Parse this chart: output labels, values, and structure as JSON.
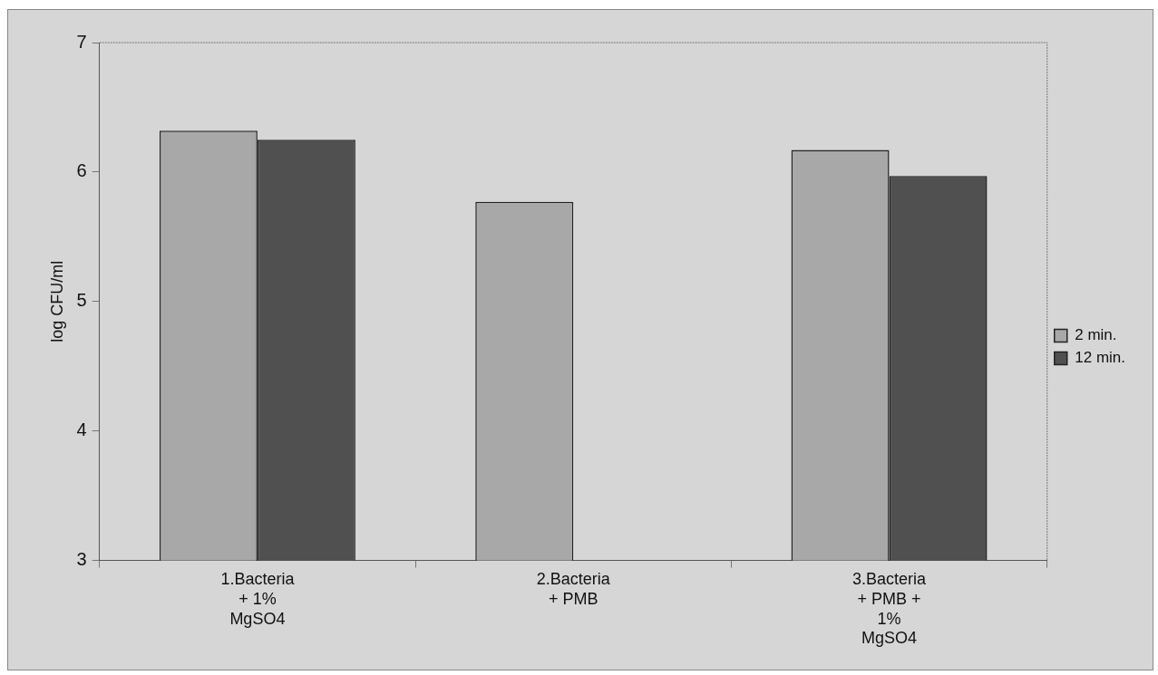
{
  "chart_data": {
    "type": "bar",
    "ylabel": "log CFU/ml",
    "categories": [
      "1.Bacteria\n+ 1%\nMgSO4",
      "2.Bacteria\n+ PMB",
      "3.Bacteria\n+ PMB +\n1%\nMgSO4"
    ],
    "series": [
      {
        "name": "2 min.",
        "color": "#a8a8a8",
        "values": [
          6.32,
          5.77,
          6.17
        ]
      },
      {
        "name": "12 min.",
        "color": "#505050",
        "values": [
          6.25,
          null,
          5.97
        ]
      }
    ],
    "ylim": [
      3,
      7
    ],
    "yticks": [
      3,
      4,
      5,
      6,
      7
    ],
    "grid": false,
    "legend": "right"
  }
}
